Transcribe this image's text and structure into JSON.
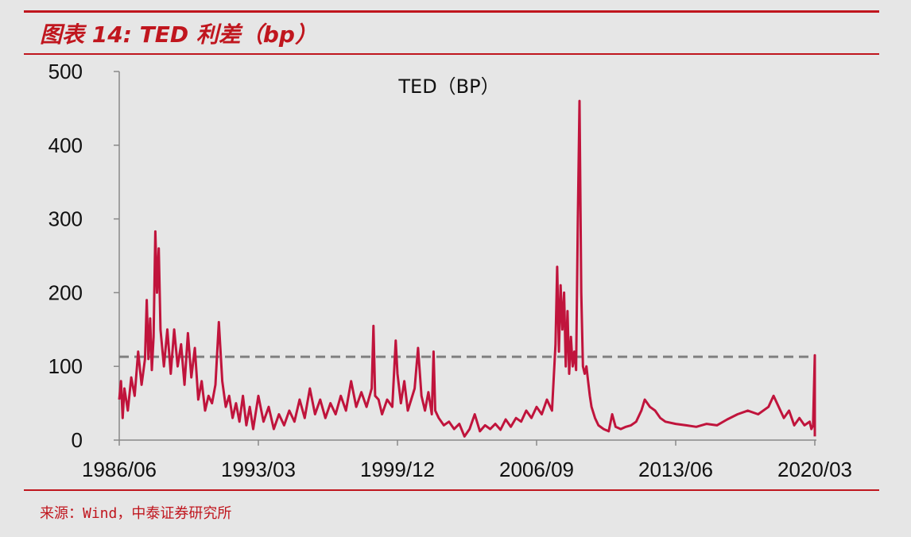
{
  "header": {
    "title": "图表 14: TED 利差（bp）"
  },
  "footer": {
    "source": "来源：Wind，中泰证券研究所"
  },
  "chart_data": {
    "type": "line",
    "title": "TED（BP）",
    "xlabel": "",
    "ylabel": "",
    "ylim": [
      0,
      500
    ],
    "yticks": [
      0,
      100,
      200,
      300,
      400,
      500
    ],
    "xticks": [
      "1986/06",
      "1993/03",
      "1999/12",
      "2006/09",
      "2013/06",
      "2020/03"
    ],
    "grid": false,
    "colors": {
      "series": "#c0143c",
      "reference": "#808080",
      "accent": "#c0161e"
    },
    "series": [
      {
        "values": [
          [
            "1986/06",
            55
          ],
          [
            "1986/07",
            80
          ],
          [
            "1986/08",
            30
          ],
          [
            "1986/09",
            70
          ],
          [
            "1986/11",
            40
          ],
          [
            "1987/01",
            85
          ],
          [
            "1987/03",
            60
          ],
          [
            "1987/05",
            120
          ],
          [
            "1987/07",
            75
          ],
          [
            "1987/09",
            110
          ],
          [
            "1987/10",
            190
          ],
          [
            "1987/11",
            110
          ],
          [
            "1987/12",
            165
          ],
          [
            "1988/01",
            95
          ],
          [
            "1988/02",
            140
          ],
          [
            "1988/03",
            283
          ],
          [
            "1988/04",
            200
          ],
          [
            "1988/05",
            260
          ],
          [
            "1988/06",
            150
          ],
          [
            "1988/08",
            100
          ],
          [
            "1988/10",
            150
          ],
          [
            "1988/12",
            90
          ],
          [
            "1989/02",
            150
          ],
          [
            "1989/04",
            100
          ],
          [
            "1989/06",
            130
          ],
          [
            "1989/08",
            75
          ],
          [
            "1989/10",
            145
          ],
          [
            "1989/12",
            85
          ],
          [
            "1990/02",
            125
          ],
          [
            "1990/04",
            55
          ],
          [
            "1990/06",
            80
          ],
          [
            "1990/08",
            40
          ],
          [
            "1990/10",
            60
          ],
          [
            "1990/12",
            50
          ],
          [
            "1991/02",
            75
          ],
          [
            "1991/04",
            160
          ],
          [
            "1991/06",
            80
          ],
          [
            "1991/08",
            45
          ],
          [
            "1991/10",
            60
          ],
          [
            "1991/12",
            30
          ],
          [
            "1992/02",
            50
          ],
          [
            "1992/04",
            25
          ],
          [
            "1992/06",
            60
          ],
          [
            "1992/08",
            20
          ],
          [
            "1992/10",
            45
          ],
          [
            "1992/12",
            15
          ],
          [
            "1993/03",
            60
          ],
          [
            "1993/06",
            25
          ],
          [
            "1993/09",
            45
          ],
          [
            "1993/12",
            15
          ],
          [
            "1994/03",
            35
          ],
          [
            "1994/06",
            20
          ],
          [
            "1994/09",
            40
          ],
          [
            "1994/12",
            25
          ],
          [
            "1995/03",
            55
          ],
          [
            "1995/06",
            30
          ],
          [
            "1995/09",
            70
          ],
          [
            "1995/12",
            35
          ],
          [
            "1996/03",
            55
          ],
          [
            "1996/06",
            30
          ],
          [
            "1996/09",
            50
          ],
          [
            "1996/12",
            35
          ],
          [
            "1997/03",
            60
          ],
          [
            "1997/06",
            40
          ],
          [
            "1997/09",
            80
          ],
          [
            "1997/12",
            45
          ],
          [
            "1998/03",
            65
          ],
          [
            "1998/06",
            45
          ],
          [
            "1998/09",
            70
          ],
          [
            "1998/10",
            155
          ],
          [
            "1998/11",
            60
          ],
          [
            "1999/01",
            55
          ],
          [
            "1999/03",
            35
          ],
          [
            "1999/06",
            55
          ],
          [
            "1999/09",
            45
          ],
          [
            "1999/11",
            135
          ],
          [
            "1999/12",
            90
          ],
          [
            "2000/02",
            50
          ],
          [
            "2000/04",
            80
          ],
          [
            "2000/06",
            40
          ],
          [
            "2000/08",
            55
          ],
          [
            "2000/10",
            70
          ],
          [
            "2000/12",
            125
          ],
          [
            "2001/02",
            60
          ],
          [
            "2001/04",
            40
          ],
          [
            "2001/06",
            65
          ],
          [
            "2001/08",
            35
          ],
          [
            "2001/09",
            120
          ],
          [
            "2001/10",
            40
          ],
          [
            "2001/12",
            30
          ],
          [
            "2002/03",
            20
          ],
          [
            "2002/06",
            25
          ],
          [
            "2002/09",
            15
          ],
          [
            "2002/12",
            22
          ],
          [
            "2003/03",
            5
          ],
          [
            "2003/06",
            15
          ],
          [
            "2003/09",
            35
          ],
          [
            "2003/12",
            12
          ],
          [
            "2004/03",
            20
          ],
          [
            "2004/06",
            15
          ],
          [
            "2004/09",
            22
          ],
          [
            "2004/12",
            14
          ],
          [
            "2005/03",
            28
          ],
          [
            "2005/06",
            18
          ],
          [
            "2005/09",
            30
          ],
          [
            "2005/12",
            25
          ],
          [
            "2006/03",
            40
          ],
          [
            "2006/06",
            30
          ],
          [
            "2006/09",
            45
          ],
          [
            "2006/12",
            35
          ],
          [
            "2007/03",
            55
          ],
          [
            "2007/06",
            40
          ],
          [
            "2007/08",
            130
          ],
          [
            "2007/09",
            235
          ],
          [
            "2007/10",
            120
          ],
          [
            "2007/11",
            210
          ],
          [
            "2007/12",
            150
          ],
          [
            "2008/01",
            200
          ],
          [
            "2008/02",
            100
          ],
          [
            "2008/03",
            175
          ],
          [
            "2008/04",
            90
          ],
          [
            "2008/05",
            140
          ],
          [
            "2008/06",
            100
          ],
          [
            "2008/07",
            120
          ],
          [
            "2008/08",
            95
          ],
          [
            "2008/09",
            300
          ],
          [
            "2008/10",
            460
          ],
          [
            "2008/11",
            200
          ],
          [
            "2008/12",
            100
          ],
          [
            "2009/01",
            90
          ],
          [
            "2009/02",
            100
          ],
          [
            "2009/03",
            80
          ],
          [
            "2009/04",
            60
          ],
          [
            "2009/05",
            45
          ],
          [
            "2009/07",
            30
          ],
          [
            "2009/09",
            20
          ],
          [
            "2009/12",
            15
          ],
          [
            "2010/03",
            12
          ],
          [
            "2010/05",
            35
          ],
          [
            "2010/07",
            18
          ],
          [
            "2010/10",
            15
          ],
          [
            "2011/01",
            18
          ],
          [
            "2011/04",
            20
          ],
          [
            "2011/07",
            25
          ],
          [
            "2011/10",
            40
          ],
          [
            "2011/12",
            55
          ],
          [
            "2012/03",
            45
          ],
          [
            "2012/06",
            40
          ],
          [
            "2012/09",
            30
          ],
          [
            "2012/12",
            25
          ],
          [
            "2013/06",
            22
          ],
          [
            "2013/12",
            20
          ],
          [
            "2014/06",
            18
          ],
          [
            "2014/12",
            22
          ],
          [
            "2015/06",
            20
          ],
          [
            "2015/12",
            28
          ],
          [
            "2016/06",
            35
          ],
          [
            "2016/12",
            40
          ],
          [
            "2017/06",
            35
          ],
          [
            "2017/12",
            45
          ],
          [
            "2018/03",
            60
          ],
          [
            "2018/06",
            45
          ],
          [
            "2018/09",
            30
          ],
          [
            "2018/12",
            40
          ],
          [
            "2019/03",
            20
          ],
          [
            "2019/06",
            30
          ],
          [
            "2019/09",
            20
          ],
          [
            "2019/12",
            25
          ],
          [
            "2020/01",
            15
          ],
          [
            "2020/02",
            20
          ],
          [
            "2020/03",
            115
          ],
          [
            "2020/03",
            5
          ]
        ]
      }
    ],
    "reference_lines": [
      {
        "orientation": "horizontal",
        "value": 113,
        "style": "dashed"
      }
    ]
  }
}
